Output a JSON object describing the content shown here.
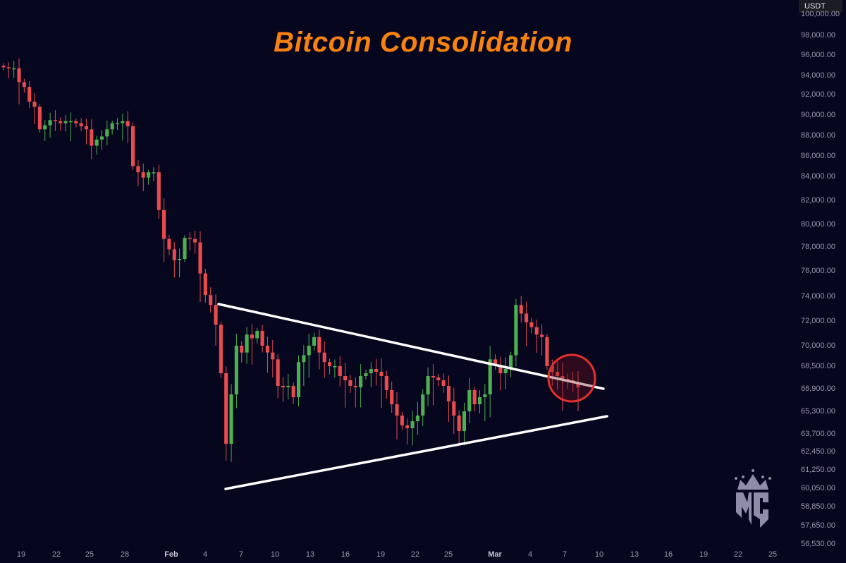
{
  "chart_data": {
    "type": "candlestick",
    "title": "Bitcoin Consolidation",
    "currency_label": "USDT",
    "y_ticks": [
      "100,000.00",
      "98,000.00",
      "96,000.00",
      "94,000.00",
      "92,000.00",
      "90,000.00",
      "88,000.00",
      "86,000.00",
      "84,000.00",
      "82,000.00",
      "80,000.00",
      "78,000.00",
      "76,000.00",
      "74,000.00",
      "72,000.00",
      "70,000.00",
      "68,500.00",
      "66,900.00",
      "65,300.00",
      "63,700.00",
      "62,450.00",
      "61,250.00",
      "60,050.00",
      "58,850.00",
      "57,650.00",
      "56,530.00"
    ],
    "y_tick_values": [
      100000,
      98000,
      96000,
      94000,
      92000,
      90000,
      88000,
      86000,
      84000,
      82000,
      80000,
      78000,
      76000,
      74000,
      72000,
      70000,
      68500,
      66900,
      65300,
      63700,
      62450,
      61250,
      60050,
      58850,
      57650,
      56530
    ],
    "x_ticks": [
      "19",
      "22",
      "25",
      "28",
      "Feb",
      "4",
      "7",
      "10",
      "13",
      "16",
      "19",
      "22",
      "25",
      "Mar",
      "4",
      "7",
      "10",
      "13",
      "16",
      "19",
      "22",
      "25"
    ],
    "closes": [
      94.8,
      94.7,
      94.7,
      93.3,
      92.8,
      91.3,
      90.8,
      88.6,
      89.0,
      89.5,
      89.4,
      89.2,
      89.4,
      89.4,
      89.2,
      88.9,
      88.6,
      87.0,
      87.6,
      87.9,
      88.6,
      89.2,
      89.2,
      89.4,
      88.9,
      85.0,
      84.4,
      83.9,
      84.4,
      84.4,
      81.2,
      78.7,
      77.8,
      76.9,
      77.0,
      78.8,
      78.7,
      78.4,
      75.8,
      74.1,
      73.3,
      71.7,
      68.0,
      63.0,
      66.5,
      70.0,
      69.5,
      70.9,
      70.6,
      71.2,
      70.0,
      69.5,
      69.0,
      67.1,
      67.0,
      67.1,
      66.3,
      68.8,
      69.3,
      70.0,
      70.7,
      69.5,
      68.8,
      68.5,
      68.5,
      67.8,
      67.5,
      67.1,
      67.0,
      67.8,
      68.0,
      68.3,
      68.1,
      67.8,
      66.8,
      65.8,
      65.0,
      64.3,
      64.1,
      64.6,
      65.0,
      66.5,
      67.8,
      67.7,
      67.5,
      67.1,
      66.0,
      65.0,
      63.9,
      65.3,
      66.8,
      65.8,
      66.3,
      66.5,
      69.0,
      68.6,
      68.0,
      68.3,
      69.3,
      73.3,
      72.6,
      71.9,
      71.5,
      70.9,
      70.7,
      68.5,
      68.1,
      67.8,
      67.6,
      67.5,
      67.3,
      67.0
    ],
    "annotations": {
      "upper_trendline": {
        "from": 73500,
        "to": 67100
      },
      "lower_trendline": {
        "from": 60000,
        "to": 65100
      }
    },
    "colors": {
      "up": "#4caf50",
      "down": "#e84c4f",
      "background": "#07061f",
      "title": "#f7820f",
      "circle": "#e0312f"
    },
    "watermark_logo": "MC"
  }
}
